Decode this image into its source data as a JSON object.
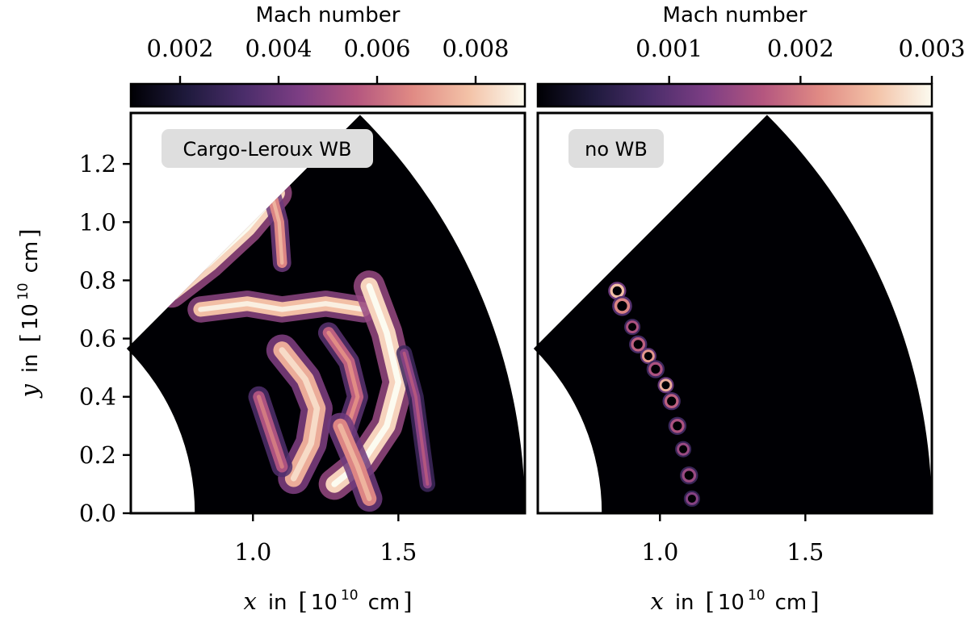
{
  "chart_data": {
    "type": "heatmap",
    "x_label": {
      "var": "x",
      "word": "in",
      "unit_base": "10",
      "unit_exp": "10",
      "unit": "cm"
    },
    "y_label": {
      "var": "y",
      "word": "in",
      "unit_base": "10",
      "unit_exp": "10",
      "unit": "cm"
    },
    "x_range": [
      0.58,
      1.935
    ],
    "y_range": [
      0.0,
      1.375
    ],
    "x_ticks": [
      1.0,
      1.5
    ],
    "x_tick_labels": [
      "1.0",
      "1.5"
    ],
    "y_ticks": [
      0.0,
      0.2,
      0.4,
      0.6,
      0.8,
      1.0,
      1.2
    ],
    "y_tick_labels": [
      "0.0",
      "0.2",
      "0.4",
      "0.6",
      "0.8",
      "1.0",
      "1.2"
    ],
    "domain": {
      "r_inner": 0.8,
      "r_outer": 1.935,
      "angle_deg": [
        0,
        45
      ]
    },
    "colormap": "magma-like (black → purple → pink → cream)",
    "colormap_stops": [
      "#000004",
      "#1f1a3d",
      "#4a2d6a",
      "#7d3e84",
      "#b4567f",
      "#e08a84",
      "#f3c2a7",
      "#fcfbf0"
    ],
    "panels": [
      {
        "label": "Cargo-Leroux WB",
        "colorbar": {
          "title": "Mach number",
          "range": [
            0.001,
            0.009
          ],
          "ticks": [
            0.002,
            0.004,
            0.006,
            0.008
          ],
          "tick_labels": [
            "0.002",
            "0.004",
            "0.006",
            "0.008"
          ]
        },
        "features": [
          {
            "kind": "plume",
            "points": [
              [
                0.72,
                0.76
              ],
              [
                0.85,
                0.86
              ],
              [
                0.98,
                0.98
              ],
              [
                1.08,
                1.1
              ]
            ],
            "width": 0.06,
            "level": 0.9
          },
          {
            "kind": "plume",
            "points": [
              [
                0.82,
                0.7
              ],
              [
                0.98,
                0.72
              ],
              [
                1.1,
                0.7
              ],
              [
                1.25,
                0.72
              ],
              [
                1.38,
                0.7
              ]
            ],
            "width": 0.05,
            "level": 0.85
          },
          {
            "kind": "plume",
            "points": [
              [
                1.4,
                0.78
              ],
              [
                1.46,
                0.62
              ],
              [
                1.5,
                0.45
              ],
              [
                1.46,
                0.3
              ],
              [
                1.38,
                0.18
              ],
              [
                1.28,
                0.1
              ]
            ],
            "width": 0.06,
            "level": 0.9
          },
          {
            "kind": "plume",
            "points": [
              [
                1.1,
                0.56
              ],
              [
                1.18,
                0.46
              ],
              [
                1.22,
                0.36
              ],
              [
                1.2,
                0.24
              ],
              [
                1.14,
                0.12
              ]
            ],
            "width": 0.06,
            "level": 0.8
          },
          {
            "kind": "plume",
            "points": [
              [
                1.26,
                0.62
              ],
              [
                1.33,
                0.52
              ],
              [
                1.36,
                0.4
              ],
              [
                1.32,
                0.28
              ]
            ],
            "width": 0.04,
            "level": 0.6
          },
          {
            "kind": "plume",
            "points": [
              [
                1.05,
                1.15
              ],
              [
                1.09,
                1.0
              ],
              [
                1.1,
                0.86
              ]
            ],
            "width": 0.035,
            "level": 0.7
          },
          {
            "kind": "plume",
            "points": [
              [
                1.3,
                0.3
              ],
              [
                1.36,
                0.16
              ],
              [
                1.4,
                0.05
              ]
            ],
            "width": 0.05,
            "level": 0.7
          },
          {
            "kind": "plume",
            "points": [
              [
                1.52,
                0.55
              ],
              [
                1.56,
                0.4
              ],
              [
                1.58,
                0.25
              ],
              [
                1.6,
                0.1
              ]
            ],
            "width": 0.03,
            "level": 0.45
          },
          {
            "kind": "plume",
            "points": [
              [
                1.02,
                0.4
              ],
              [
                1.06,
                0.28
              ],
              [
                1.1,
                0.16
              ]
            ],
            "width": 0.04,
            "level": 0.55
          }
        ]
      },
      {
        "label": "no WB",
        "colorbar": {
          "title": "Mach number",
          "range": [
            0.0,
            0.003
          ],
          "ticks": [
            0.001,
            0.002,
            0.003
          ],
          "tick_labels": [
            "0.001",
            "0.002",
            "0.003"
          ]
        },
        "features": [
          {
            "kind": "ring",
            "center": [
              0.853,
              0.764
            ],
            "radius": 0.02,
            "level": 0.85
          },
          {
            "kind": "ring",
            "center": [
              0.87,
              0.712
            ],
            "radius": 0.022,
            "level": 0.7
          },
          {
            "kind": "ring",
            "center": [
              0.905,
              0.64
            ],
            "radius": 0.018,
            "level": 0.55
          },
          {
            "kind": "ring",
            "center": [
              0.925,
              0.58
            ],
            "radius": 0.02,
            "level": 0.6
          },
          {
            "kind": "ring",
            "center": [
              0.96,
              0.54
            ],
            "radius": 0.018,
            "level": 0.75
          },
          {
            "kind": "ring",
            "center": [
              0.985,
              0.495
            ],
            "radius": 0.02,
            "level": 0.55
          },
          {
            "kind": "ring",
            "center": [
              1.02,
              0.44
            ],
            "radius": 0.018,
            "level": 0.8
          },
          {
            "kind": "ring",
            "center": [
              1.04,
              0.385
            ],
            "radius": 0.02,
            "level": 0.6
          },
          {
            "kind": "ring",
            "center": [
              1.06,
              0.3
            ],
            "radius": 0.02,
            "level": 0.55
          },
          {
            "kind": "ring",
            "center": [
              1.08,
              0.22
            ],
            "radius": 0.018,
            "level": 0.5
          },
          {
            "kind": "ring",
            "center": [
              1.1,
              0.13
            ],
            "radius": 0.02,
            "level": 0.5
          },
          {
            "kind": "ring",
            "center": [
              1.11,
              0.05
            ],
            "radius": 0.018,
            "level": 0.45
          }
        ]
      }
    ]
  }
}
